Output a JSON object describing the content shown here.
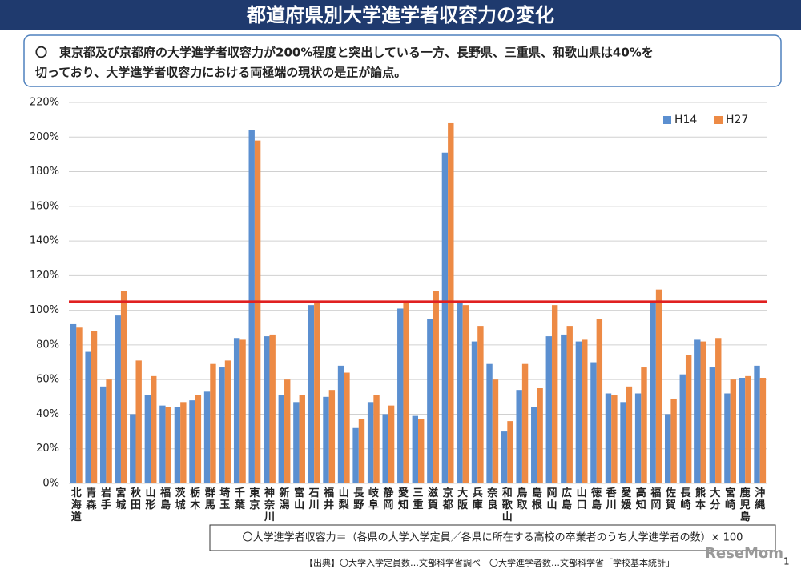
{
  "chart_data": {
    "type": "bar",
    "title": "都道府県別大学進学者収容力の変化",
    "note": [
      "〇　東京都及び京都府の大学進学者収容力が200%程度と突出している一方、長野県、三重県、和歌山県は40%を",
      "切っており、大学進学者収容力における両極端の現状の是正が論点。"
    ],
    "categories": [
      "北海道",
      "青森",
      "岩手",
      "宮城",
      "秋田",
      "山形",
      "福島",
      "茨城",
      "栃木",
      "群馬",
      "埼玉",
      "千葉",
      "東京",
      "神奈川",
      "新潟",
      "富山",
      "石川",
      "福井",
      "山梨",
      "長野",
      "岐阜",
      "静岡",
      "愛知",
      "三重",
      "滋賀",
      "京都",
      "大阪",
      "兵庫",
      "奈良",
      "和歌山",
      "鳥取",
      "島根",
      "岡山",
      "広島",
      "山口",
      "徳島",
      "香川",
      "愛媛",
      "高知",
      "福岡",
      "佐賀",
      "長崎",
      "熊本",
      "大分",
      "宮崎",
      "鹿児島",
      "沖縄"
    ],
    "series": [
      {
        "name": "H14",
        "color": "#5b8fd0",
        "values": [
          92,
          76,
          56,
          97,
          40,
          51,
          45,
          44,
          48,
          53,
          67,
          84,
          204,
          85,
          51,
          47,
          103,
          50,
          68,
          32,
          47,
          40,
          101,
          39,
          95,
          191,
          104,
          82,
          69,
          30,
          54,
          44,
          85,
          86,
          82,
          70,
          52,
          47,
          52,
          105,
          40,
          63,
          83,
          67,
          52,
          61,
          68
        ]
      },
      {
        "name": "H27",
        "color": "#ed8a45",
        "values": [
          90,
          88,
          60,
          111,
          71,
          62,
          44,
          47,
          51,
          69,
          71,
          83,
          198,
          86,
          60,
          51,
          104,
          54,
          64,
          37,
          51,
          45,
          104,
          37,
          111,
          208,
          103,
          91,
          60,
          36,
          69,
          55,
          103,
          91,
          83,
          95,
          51,
          56,
          67,
          112,
          49,
          74,
          82,
          84,
          60,
          62,
          61
        ]
      }
    ],
    "reference_line": {
      "value": 105,
      "color": "#e02020"
    },
    "ylim": [
      0,
      220
    ],
    "yticks": [
      {
        "value": 0,
        "label": "0%"
      },
      {
        "value": 20,
        "label": "20%"
      },
      {
        "value": 40,
        "label": "40%"
      },
      {
        "value": 60,
        "label": "60%"
      },
      {
        "value": 80,
        "label": "80%"
      },
      {
        "value": 100,
        "label": "100%"
      },
      {
        "value": 120,
        "label": "120%"
      },
      {
        "value": 140,
        "label": "140%"
      },
      {
        "value": 160,
        "label": "160%"
      },
      {
        "value": 180,
        "label": "180%"
      },
      {
        "value": 200,
        "label": "200%"
      },
      {
        "value": 220,
        "label": "220%"
      }
    ],
    "grid": true,
    "legend": "top-right",
    "formula": "〇大学進学者収容力＝（各県の大学入学定員／各県に所在する高校の卒業者のうち大学進学者の数）× 100",
    "source": "【出典】〇大学入学定員数…文部科学省調べ　〇大学進学者数…文部科学省「学校基本統計」",
    "page_number": "1",
    "watermark": "ReseMom"
  }
}
